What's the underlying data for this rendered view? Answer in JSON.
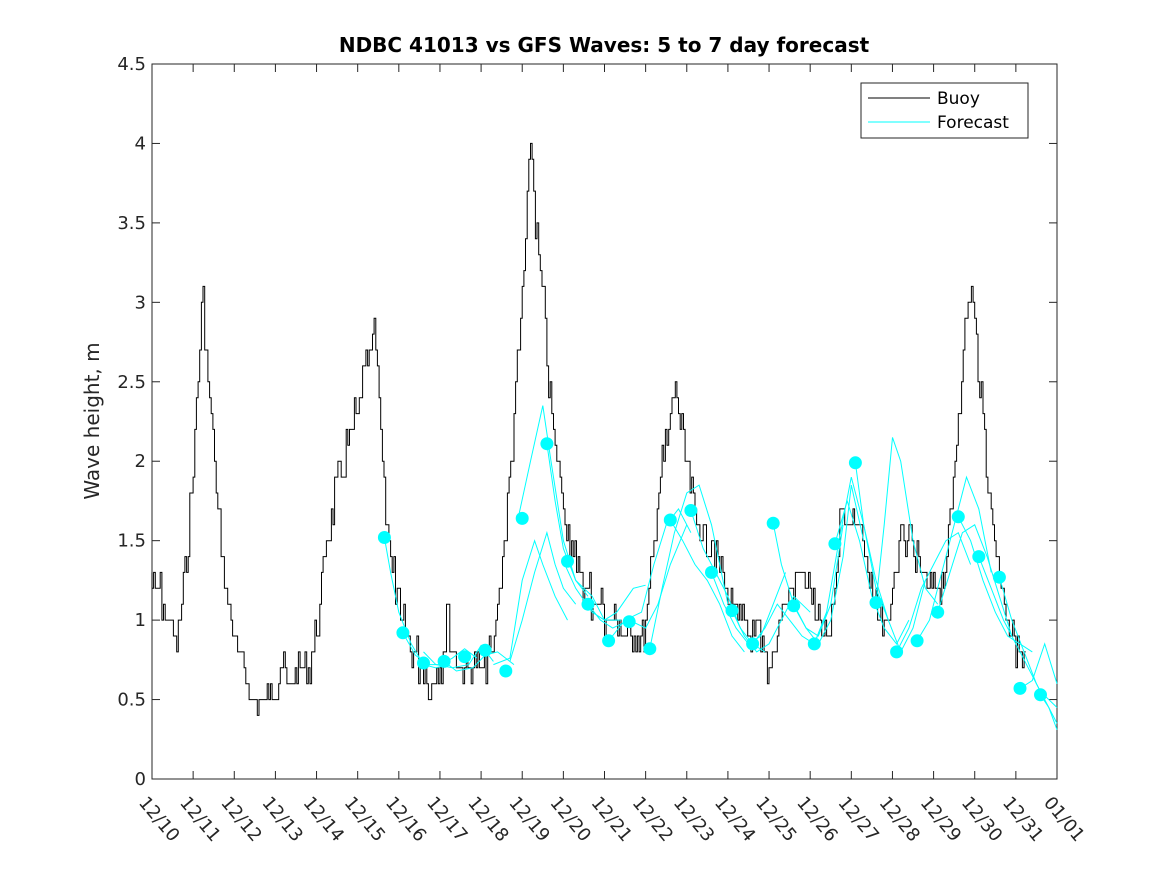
{
  "chart_data": {
    "type": "line",
    "title": "NDBC 41013 vs GFS Waves: 5 to 7 day forecast",
    "xlabel": "",
    "ylabel": "Wave height, m",
    "xlim": [
      0,
      22
    ],
    "ylim": [
      0,
      4.5
    ],
    "x_tick_labels": [
      "12/10",
      "12/11",
      "12/12",
      "12/13",
      "12/14",
      "12/15",
      "12/16",
      "12/17",
      "12/18",
      "12/19",
      "12/20",
      "12/21",
      "12/22",
      "12/23",
      "12/24",
      "12/25",
      "12/26",
      "12/27",
      "12/28",
      "12/29",
      "12/30",
      "12/31",
      "01/01"
    ],
    "y_ticks": [
      0,
      0.5,
      1,
      1.5,
      2,
      2.5,
      3,
      3.5,
      4,
      4.5
    ],
    "y_tick_labels": [
      "0",
      "0.5",
      "1",
      "1.5",
      "2",
      "2.5",
      "3",
      "3.5",
      "4",
      "4.5"
    ],
    "legend": {
      "position": "top-right",
      "entries": [
        "Buoy",
        "Forecast"
      ]
    },
    "colors": {
      "buoy": "#000000",
      "forecast": "#00ffff",
      "axes": "#262626"
    },
    "buoy_anchors": [
      [
        0,
        1.25
      ],
      [
        0.1,
        1.2
      ],
      [
        0.25,
        1.15
      ],
      [
        0.35,
        1.05
      ],
      [
        0.5,
        0.95
      ],
      [
        0.65,
        0.8
      ],
      [
        0.8,
        1.15
      ],
      [
        1.0,
        1.8
      ],
      [
        1.1,
        2.3
      ],
      [
        1.2,
        2.7
      ],
      [
        1.25,
        3.1
      ],
      [
        1.35,
        2.7
      ],
      [
        1.5,
        2.2
      ],
      [
        1.7,
        1.5
      ],
      [
        1.9,
        1.1
      ],
      [
        2.1,
        0.8
      ],
      [
        2.3,
        0.65
      ],
      [
        2.5,
        0.5
      ],
      [
        2.8,
        0.5
      ],
      [
        3.0,
        0.6
      ],
      [
        3.2,
        0.68
      ],
      [
        3.4,
        0.62
      ],
      [
        3.6,
        0.67
      ],
      [
        3.8,
        0.65
      ],
      [
        4.1,
        1.0
      ],
      [
        4.3,
        1.5
      ],
      [
        4.5,
        1.8
      ],
      [
        4.7,
        2.0
      ],
      [
        4.9,
        2.2
      ],
      [
        5.1,
        2.4
      ],
      [
        5.25,
        2.6
      ],
      [
        5.4,
        2.7
      ],
      [
        5.45,
        2.9
      ],
      [
        5.55,
        2.4
      ],
      [
        5.7,
        1.8
      ],
      [
        5.9,
        1.3
      ],
      [
        6.1,
        1.0
      ],
      [
        6.3,
        0.85
      ],
      [
        6.5,
        0.75
      ],
      [
        6.7,
        0.65
      ],
      [
        6.9,
        0.63
      ],
      [
        7.1,
        0.7
      ],
      [
        7.2,
        1.1
      ],
      [
        7.3,
        0.85
      ],
      [
        7.5,
        0.7
      ],
      [
        7.7,
        0.65
      ],
      [
        7.9,
        0.68
      ],
      [
        8.1,
        0.72
      ],
      [
        8.3,
        0.78
      ],
      [
        8.5,
        1.2
      ],
      [
        8.7,
        1.8
      ],
      [
        8.9,
        2.5
      ],
      [
        9.05,
        3.1
      ],
      [
        9.15,
        3.6
      ],
      [
        9.25,
        4.1
      ],
      [
        9.35,
        3.5
      ],
      [
        9.5,
        3.2
      ],
      [
        9.65,
        2.6
      ],
      [
        9.8,
        2.2
      ],
      [
        10.0,
        1.8
      ],
      [
        10.2,
        1.5
      ],
      [
        10.4,
        1.3
      ],
      [
        10.6,
        1.2
      ],
      [
        10.8,
        1.1
      ],
      [
        11.0,
        1.05
      ],
      [
        11.2,
        1.0
      ],
      [
        11.4,
        0.95
      ],
      [
        11.6,
        0.92
      ],
      [
        11.8,
        0.95
      ],
      [
        12.0,
        0.9
      ],
      [
        12.2,
        1.4
      ],
      [
        12.4,
        1.9
      ],
      [
        12.6,
        2.2
      ],
      [
        12.75,
        2.5
      ],
      [
        12.9,
        2.2
      ],
      [
        13.1,
        1.85
      ],
      [
        13.3,
        1.6
      ],
      [
        13.5,
        1.5
      ],
      [
        13.7,
        1.45
      ],
      [
        13.9,
        1.3
      ],
      [
        14.1,
        1.1
      ],
      [
        14.3,
        1.0
      ],
      [
        14.5,
        0.95
      ],
      [
        14.7,
        0.9
      ],
      [
        14.9,
        0.8
      ],
      [
        15.0,
        0.6
      ],
      [
        15.2,
        0.9
      ],
      [
        15.4,
        1.1
      ],
      [
        15.6,
        1.2
      ],
      [
        15.8,
        1.3
      ],
      [
        16.0,
        1.2
      ],
      [
        16.15,
        1.05
      ],
      [
        16.3,
        0.95
      ],
      [
        16.5,
        0.85
      ],
      [
        16.7,
        1.3
      ],
      [
        16.8,
        1.8
      ],
      [
        16.95,
        1.6
      ],
      [
        17.1,
        1.7
      ],
      [
        17.3,
        1.5
      ],
      [
        17.5,
        1.2
      ],
      [
        17.7,
        1.0
      ],
      [
        17.9,
        0.95
      ],
      [
        18.1,
        1.3
      ],
      [
        18.3,
        1.55
      ],
      [
        18.5,
        1.5
      ],
      [
        18.7,
        1.3
      ],
      [
        18.9,
        1.2
      ],
      [
        19.1,
        1.15
      ],
      [
        19.3,
        1.3
      ],
      [
        19.5,
        1.8
      ],
      [
        19.7,
        2.5
      ],
      [
        19.85,
        2.9
      ],
      [
        19.95,
        3.1
      ],
      [
        20.1,
        2.7
      ],
      [
        20.3,
        2.1
      ],
      [
        20.5,
        1.5
      ],
      [
        20.7,
        1.2
      ],
      [
        20.9,
        0.9
      ],
      [
        21.1,
        0.8
      ],
      [
        21.25,
        0.7
      ]
    ],
    "forecast_lines": [
      [
        [
          5.65,
          1.52
        ],
        [
          5.8,
          1.3
        ],
        [
          6.0,
          1.05
        ],
        [
          6.3,
          0.85
        ],
        [
          6.6,
          0.72
        ],
        [
          6.9,
          0.7
        ],
        [
          7.2,
          0.72
        ]
      ],
      [
        [
          6.1,
          0.92
        ],
        [
          6.4,
          0.78
        ],
        [
          6.7,
          0.72
        ],
        [
          7.0,
          0.72
        ],
        [
          7.3,
          0.76
        ],
        [
          7.6,
          0.82
        ],
        [
          7.9,
          0.76
        ]
      ],
      [
        [
          6.6,
          0.8
        ],
        [
          6.9,
          0.72
        ],
        [
          7.3,
          0.7
        ],
        [
          7.7,
          0.72
        ],
        [
          8.0,
          0.84
        ],
        [
          8.3,
          0.74
        ]
      ],
      [
        [
          7.1,
          0.74
        ],
        [
          7.4,
          0.68
        ],
        [
          7.8,
          0.7
        ],
        [
          8.1,
          0.78
        ],
        [
          8.4,
          0.8
        ],
        [
          8.8,
          0.72
        ]
      ],
      [
        [
          8.3,
          0.72
        ],
        [
          8.7,
          0.76
        ],
        [
          9.0,
          1.25
        ],
        [
          9.3,
          1.5
        ],
        [
          9.5,
          1.35
        ],
        [
          9.8,
          1.15
        ],
        [
          10.1,
          1.0
        ]
      ],
      [
        [
          8.7,
          0.74
        ],
        [
          9.0,
          1.0
        ],
        [
          9.3,
          1.3
        ],
        [
          9.6,
          1.55
        ],
        [
          9.8,
          1.35
        ],
        [
          10.0,
          1.2
        ],
        [
          10.3,
          1.1
        ]
      ],
      [
        [
          8.9,
          1.64
        ],
        [
          9.2,
          2.0
        ],
        [
          9.5,
          2.35
        ],
        [
          9.7,
          2.0
        ],
        [
          10.0,
          1.5
        ],
        [
          10.3,
          1.25
        ],
        [
          10.6,
          1.15
        ]
      ],
      [
        [
          9.6,
          2.11
        ],
        [
          9.8,
          1.75
        ],
        [
          10.0,
          1.45
        ],
        [
          10.3,
          1.25
        ],
        [
          10.7,
          1.15
        ],
        [
          11.0,
          1.0
        ],
        [
          11.4,
          1.0
        ]
      ],
      [
        [
          10.0,
          1.37
        ],
        [
          10.3,
          1.2
        ],
        [
          10.7,
          1.05
        ],
        [
          11.0,
          1.0
        ],
        [
          11.3,
          1.05
        ],
        [
          11.7,
          1.2
        ],
        [
          12.0,
          1.22
        ]
      ],
      [
        [
          10.6,
          1.1
        ],
        [
          10.9,
          1.0
        ],
        [
          11.2,
          0.95
        ],
        [
          11.6,
          1.0
        ],
        [
          12.0,
          0.95
        ],
        [
          12.3,
          1.1
        ],
        [
          12.6,
          1.35
        ],
        [
          13.0,
          1.6
        ]
      ],
      [
        [
          11.1,
          0.87
        ],
        [
          11.5,
          1.0
        ],
        [
          11.9,
          1.05
        ],
        [
          12.2,
          1.35
        ],
        [
          12.5,
          1.6
        ],
        [
          12.8,
          1.7
        ],
        [
          13.1,
          1.55
        ]
      ],
      [
        [
          12.1,
          0.82
        ],
        [
          12.4,
          1.2
        ],
        [
          12.7,
          1.55
        ],
        [
          13.0,
          1.8
        ],
        [
          13.3,
          1.85
        ],
        [
          13.6,
          1.6
        ],
        [
          14.0,
          1.1
        ]
      ],
      [
        [
          12.6,
          1.63
        ],
        [
          12.9,
          1.5
        ],
        [
          13.2,
          1.35
        ],
        [
          13.5,
          1.25
        ],
        [
          13.8,
          1.1
        ],
        [
          14.1,
          0.9
        ],
        [
          14.4,
          0.8
        ]
      ],
      [
        [
          13.1,
          1.69
        ],
        [
          13.4,
          1.45
        ],
        [
          13.7,
          1.3
        ],
        [
          14.0,
          1.15
        ],
        [
          14.3,
          0.95
        ],
        [
          14.6,
          0.85
        ],
        [
          14.9,
          0.8
        ]
      ],
      [
        [
          13.6,
          1.3
        ],
        [
          13.9,
          1.1
        ],
        [
          14.2,
          0.95
        ],
        [
          14.5,
          0.85
        ],
        [
          14.8,
          0.9
        ],
        [
          15.1,
          1.1
        ],
        [
          15.4,
          1.3
        ]
      ],
      [
        [
          14.1,
          1.06
        ],
        [
          14.4,
          0.9
        ],
        [
          14.7,
          0.8
        ],
        [
          15.0,
          0.85
        ],
        [
          15.3,
          1.0
        ],
        [
          15.6,
          1.15
        ],
        [
          16.0,
          1.05
        ]
      ],
      [
        [
          14.6,
          0.85
        ],
        [
          14.9,
          0.95
        ],
        [
          15.2,
          1.1
        ],
        [
          15.5,
          1.0
        ],
        [
          15.8,
          0.9
        ],
        [
          16.1,
          0.85
        ],
        [
          16.4,
          1.05
        ]
      ],
      [
        [
          15.1,
          1.61
        ],
        [
          15.3,
          1.35
        ],
        [
          15.6,
          1.1
        ],
        [
          15.9,
          0.95
        ],
        [
          16.2,
          0.9
        ],
        [
          16.5,
          1.1
        ],
        [
          16.8,
          1.6
        ]
      ],
      [
        [
          15.6,
          1.09
        ],
        [
          15.9,
          0.95
        ],
        [
          16.2,
          0.85
        ],
        [
          16.5,
          1.0
        ],
        [
          16.8,
          1.4
        ],
        [
          17.0,
          1.85
        ],
        [
          17.3,
          1.5
        ]
      ],
      [
        [
          16.1,
          0.85
        ],
        [
          16.4,
          1.05
        ],
        [
          16.7,
          1.5
        ],
        [
          17.0,
          1.9
        ],
        [
          17.3,
          1.6
        ],
        [
          17.6,
          1.2
        ],
        [
          17.9,
          1.0
        ]
      ],
      [
        [
          16.6,
          1.48
        ],
        [
          16.9,
          1.75
        ],
        [
          17.2,
          1.5
        ],
        [
          17.5,
          1.15
        ],
        [
          17.8,
          0.95
        ],
        [
          18.1,
          0.85
        ],
        [
          18.4,
          1.0
        ]
      ],
      [
        [
          17.1,
          1.99
        ],
        [
          17.3,
          1.6
        ],
        [
          17.6,
          1.25
        ],
        [
          17.9,
          1.0
        ],
        [
          18.2,
          0.8
        ],
        [
          18.5,
          0.95
        ],
        [
          18.8,
          1.25
        ]
      ],
      [
        [
          17.6,
          1.11
        ],
        [
          17.8,
          1.6
        ],
        [
          18.0,
          2.15
        ],
        [
          18.2,
          2.0
        ],
        [
          18.5,
          1.5
        ],
        [
          18.8,
          1.2
        ],
        [
          19.1,
          1.1
        ]
      ],
      [
        [
          18.1,
          0.8
        ],
        [
          18.4,
          0.95
        ],
        [
          18.7,
          1.2
        ],
        [
          19.0,
          1.35
        ],
        [
          19.3,
          1.5
        ],
        [
          19.6,
          1.55
        ],
        [
          19.9,
          1.35
        ]
      ],
      [
        [
          18.6,
          0.87
        ],
        [
          18.9,
          1.0
        ],
        [
          19.2,
          1.3
        ],
        [
          19.5,
          1.6
        ],
        [
          19.8,
          1.9
        ],
        [
          20.1,
          1.7
        ],
        [
          20.4,
          1.3
        ]
      ],
      [
        [
          19.1,
          1.05
        ],
        [
          19.4,
          1.3
        ],
        [
          19.7,
          1.55
        ],
        [
          20.0,
          1.6
        ],
        [
          20.3,
          1.4
        ],
        [
          20.6,
          1.15
        ],
        [
          20.9,
          0.9
        ]
      ],
      [
        [
          19.6,
          1.65
        ],
        [
          19.9,
          1.5
        ],
        [
          20.2,
          1.25
        ],
        [
          20.5,
          1.05
        ],
        [
          20.8,
          0.9
        ],
        [
          21.1,
          0.85
        ],
        [
          21.4,
          0.8
        ]
      ],
      [
        [
          20.1,
          1.4
        ],
        [
          20.4,
          1.2
        ],
        [
          20.7,
          1.0
        ],
        [
          21.0,
          0.85
        ],
        [
          21.3,
          0.7
        ],
        [
          21.6,
          0.55
        ],
        [
          22.0,
          0.45
        ]
      ],
      [
        [
          20.6,
          1.27
        ],
        [
          20.9,
          1.0
        ],
        [
          21.2,
          0.8
        ],
        [
          21.5,
          0.6
        ],
        [
          21.8,
          0.45
        ],
        [
          22.0,
          0.35
        ]
      ],
      [
        [
          21.1,
          0.57
        ],
        [
          21.4,
          0.62
        ],
        [
          21.7,
          0.85
        ],
        [
          22.0,
          0.6
        ]
      ],
      [
        [
          21.6,
          0.53
        ],
        [
          21.8,
          0.45
        ],
        [
          22.0,
          0.31
        ]
      ]
    ],
    "forecast_markers": [
      [
        5.65,
        1.52
      ],
      [
        6.1,
        0.92
      ],
      [
        6.6,
        0.73
      ],
      [
        7.1,
        0.74
      ],
      [
        7.6,
        0.77
      ],
      [
        8.1,
        0.81
      ],
      [
        8.6,
        0.68
      ],
      [
        9.0,
        1.64
      ],
      [
        9.6,
        2.11
      ],
      [
        10.1,
        1.37
      ],
      [
        10.6,
        1.1
      ],
      [
        11.1,
        0.87
      ],
      [
        11.6,
        0.99
      ],
      [
        12.1,
        0.82
      ],
      [
        12.6,
        1.63
      ],
      [
        13.1,
        1.69
      ],
      [
        13.6,
        1.3
      ],
      [
        14.1,
        1.06
      ],
      [
        14.6,
        0.85
      ],
      [
        15.1,
        1.61
      ],
      [
        15.6,
        1.09
      ],
      [
        16.1,
        0.85
      ],
      [
        16.6,
        1.48
      ],
      [
        17.1,
        1.99
      ],
      [
        17.6,
        1.11
      ],
      [
        18.1,
        0.8
      ],
      [
        18.6,
        0.87
      ],
      [
        19.1,
        1.05
      ],
      [
        19.6,
        1.65
      ],
      [
        20.1,
        1.4
      ],
      [
        20.6,
        1.27
      ],
      [
        21.1,
        0.57
      ],
      [
        21.6,
        0.53
      ]
    ]
  }
}
